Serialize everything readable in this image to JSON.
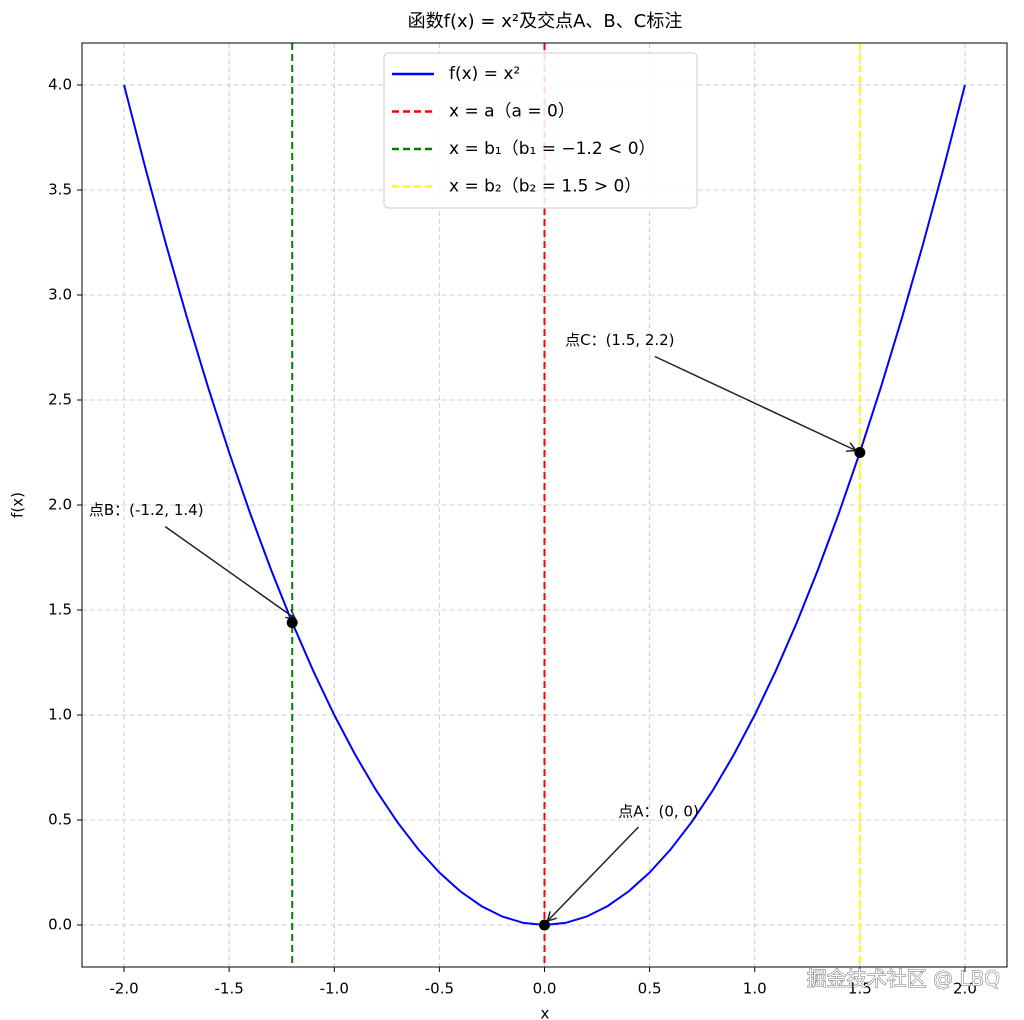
{
  "chart_data": {
    "type": "line",
    "title": "函数f(x) = x²及交点A、B、C标注",
    "xlabel": "x",
    "ylabel": "f(x)",
    "x": [
      -2,
      -1.9,
      -1.8,
      -1.7,
      -1.6,
      -1.5,
      -1.4,
      -1.3,
      -1.2,
      -1.1,
      -1,
      -0.9,
      -0.8,
      -0.7,
      -0.6,
      -0.5,
      -0.4,
      -0.3,
      -0.2,
      -0.1,
      0,
      0.1,
      0.2,
      0.3,
      0.4,
      0.5,
      0.6,
      0.7,
      0.8,
      0.9,
      1,
      1.1,
      1.2,
      1.3,
      1.4,
      1.5,
      1.6,
      1.7,
      1.8,
      1.9,
      2
    ],
    "series": [
      {
        "name": "f(x) = x²",
        "color": "#0000ff",
        "values": [
          4,
          3.61,
          3.24,
          2.89,
          2.56,
          2.25,
          1.96,
          1.69,
          1.44,
          1.21,
          1,
          0.81,
          0.64,
          0.49,
          0.36,
          0.25,
          0.16,
          0.09,
          0.04,
          0.01,
          0,
          0.01,
          0.04,
          0.09,
          0.16,
          0.25,
          0.36,
          0.49,
          0.64,
          0.81,
          1,
          1.21,
          1.44,
          1.69,
          1.96,
          2.25,
          2.56,
          2.89,
          3.24,
          3.61,
          4
        ]
      }
    ],
    "vlines": [
      {
        "name": "x = a（a = 0）",
        "color": "#ff0000",
        "x": 0
      },
      {
        "name": "x = b₁（b₁ = −1.2 < 0）",
        "color": "#008000",
        "x": -1.2
      },
      {
        "name": "x = b₂（b₂ = 1.5 > 0）",
        "color": "#ffff00",
        "x": 1.5
      }
    ],
    "annotations": [
      {
        "text": "点A：(0, 0)",
        "x": 0,
        "y": 0
      },
      {
        "text": "点B：(-1.2, 1.4)",
        "x": -1.2,
        "y": 1.44
      },
      {
        "text": "点C：(1.5, 2.2)",
        "x": 1.5,
        "y": 2.25
      }
    ],
    "xlim": [
      -2.2,
      2.2
    ],
    "ylim": [
      -0.2,
      4.2
    ],
    "xticks": [
      {
        "value": -2,
        "label": "-2.0"
      },
      -1.5,
      {
        "value": -1,
        "label": "-1.0"
      },
      -0.5,
      {
        "value": 0,
        "label": "0.0"
      },
      0.5,
      {
        "value": 1,
        "label": "1.0"
      },
      1.5,
      {
        "value": 2,
        "label": "2.0"
      }
    ],
    "yticks": [
      {
        "value": 0,
        "label": "0.0"
      },
      0.5,
      {
        "value": 1,
        "label": "1.0"
      },
      1.5,
      {
        "value": 2,
        "label": "2.0"
      },
      2.5,
      {
        "value": 3,
        "label": "3.0"
      },
      3.5,
      {
        "value": 4,
        "label": "4.0"
      }
    ],
    "grid": true,
    "legend": "upper center",
    "watermark": "掘金技术社区 @ LBQ"
  }
}
